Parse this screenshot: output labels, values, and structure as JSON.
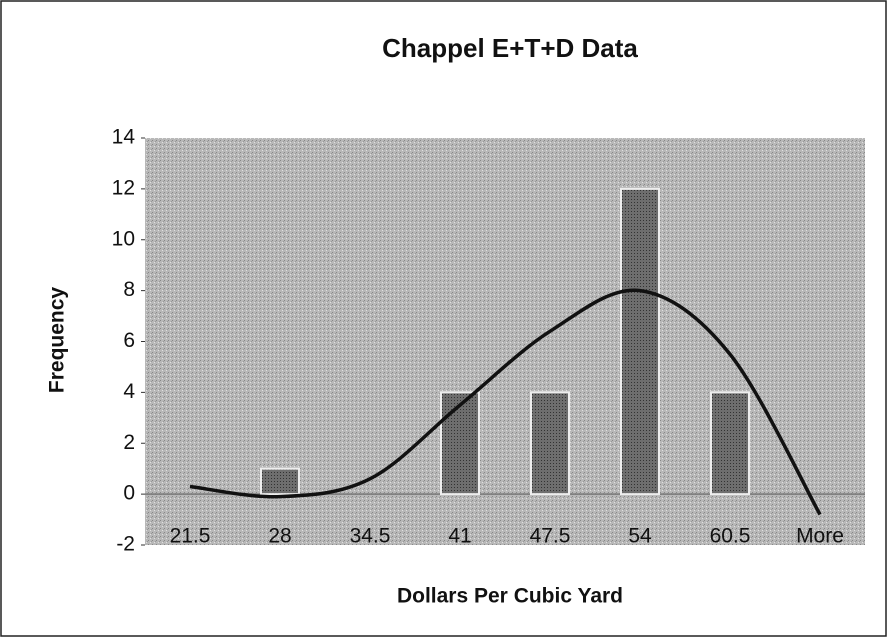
{
  "chart_data": {
    "type": "bar",
    "title": "Chappel E+T+D Data",
    "x_label": "Dollars Per Cubic Yard",
    "y_label": "Frequency",
    "categories": [
      "21.5",
      "28",
      "34.5",
      "41",
      "47.5",
      "54",
      "60.5",
      "More"
    ],
    "values": [
      0,
      1,
      0,
      4,
      4,
      12,
      4,
      0
    ],
    "color": "#6e6e6e",
    "trendline": {
      "values": [
        0.3,
        -0.1,
        0.6,
        3.5,
        6.4,
        8.0,
        5.5,
        -0.8
      ],
      "color": "#111111"
    },
    "ylim": [
      -2,
      14
    ],
    "yticks": [
      -2,
      0,
      2,
      4,
      6,
      8,
      10,
      12,
      14
    ],
    "grid": false
  }
}
